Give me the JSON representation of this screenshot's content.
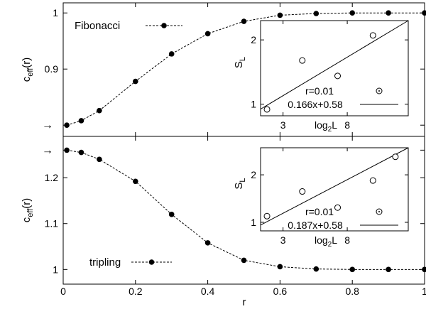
{
  "figure": {
    "xlabel": "r",
    "x_ticks": [
      "0",
      "0.2",
      "0.4",
      "0.6",
      "0.8",
      "1"
    ]
  },
  "chart_data": [
    {
      "type": "line",
      "panel": "top",
      "xlabel": "r",
      "ylabel_main": "c",
      "ylabel_sub": "eff",
      "ylabel_tail": "(r)",
      "xlim": [
        0,
        1
      ],
      "ylim": [
        0.78,
        1.018
      ],
      "y_ticks": [
        0.8,
        0.9,
        1
      ],
      "y_tick_labels": [
        "",
        "0.9",
        "1"
      ],
      "arrow_at": 0.8,
      "arrow_glyph": "→",
      "grid": false,
      "legend_position": "top-left",
      "series": [
        {
          "name": "Fibonacci",
          "style": "dashed line with filled circles",
          "x": [
            0.01,
            0.05,
            0.1,
            0.2,
            0.3,
            0.4,
            0.5,
            0.6,
            0.7,
            0.8,
            0.9,
            1.0
          ],
          "y": [
            0.8,
            0.808,
            0.826,
            0.878,
            0.927,
            0.963,
            0.985,
            0.996,
            0.999,
            1.0,
            1.0,
            1.0
          ]
        }
      ],
      "inset": {
        "type": "scatter",
        "xlabel_main": "log",
        "xlabel_sub": "2",
        "xlabel_tail": "L",
        "ylabel_main": "S",
        "ylabel_sub": "L",
        "x_tick_labels": [
          "3",
          "8"
        ],
        "y_tick_labels": [
          "1",
          "2"
        ],
        "x_ticks_at": [
          2,
          4
        ],
        "y_ticks_at": [
          1,
          2
        ],
        "xlim": [
          1.3,
          5.9
        ],
        "ylim": [
          0.82,
          2.3
        ],
        "legend_points": "r=0.01",
        "legend_fit": "0.166x+0.58",
        "points": {
          "x": [
            1.5,
            2.6,
            3.7,
            4.8
          ],
          "y": [
            0.92,
            1.68,
            1.44,
            2.07
          ]
        },
        "fit_line": {
          "slope": 0.166,
          "intercept": 0.58
        }
      }
    },
    {
      "type": "line",
      "panel": "bottom",
      "xlabel": "r",
      "ylabel_main": "c",
      "ylabel_sub": "eff",
      "ylabel_tail": "(r)",
      "xlim": [
        0,
        1
      ],
      "ylim": [
        0.968,
        1.29
      ],
      "y_ticks": [
        1,
        1.1,
        1.2,
        1.26
      ],
      "y_tick_labels": [
        "1",
        "1.1",
        "1.2",
        ""
      ],
      "arrow_at": 1.26,
      "arrow_glyph": "→",
      "grid": false,
      "legend_position": "bottom-left",
      "series": [
        {
          "name": "tripling",
          "style": "dashed line with filled circles",
          "x": [
            0.01,
            0.05,
            0.1,
            0.2,
            0.3,
            0.4,
            0.5,
            0.6,
            0.7,
            0.8,
            0.9,
            1.0
          ],
          "y": [
            1.26,
            1.255,
            1.24,
            1.192,
            1.12,
            1.058,
            1.02,
            1.006,
            1.001,
            1.0,
            1.0,
            1.0
          ]
        }
      ],
      "inset": {
        "type": "scatter",
        "xlabel_main": "log",
        "xlabel_sub": "2",
        "xlabel_tail": "L",
        "ylabel_main": "S",
        "ylabel_sub": "L",
        "x_tick_labels": [
          "3",
          "8"
        ],
        "y_tick_labels": [
          "1",
          "2"
        ],
        "x_ticks_at": [
          2,
          4
        ],
        "y_ticks_at": [
          1,
          2
        ],
        "xlim": [
          1.3,
          5.9
        ],
        "ylim": [
          0.82,
          2.57
        ],
        "legend_points": "r=0.01",
        "legend_fit": "0.187x+0.58",
        "points": {
          "x": [
            1.5,
            2.6,
            3.7,
            4.8,
            5.5
          ],
          "y": [
            1.13,
            1.65,
            1.31,
            1.88,
            2.38
          ]
        },
        "fit_line": {
          "slope": 0.187,
          "intercept": 0.58
        }
      }
    }
  ]
}
